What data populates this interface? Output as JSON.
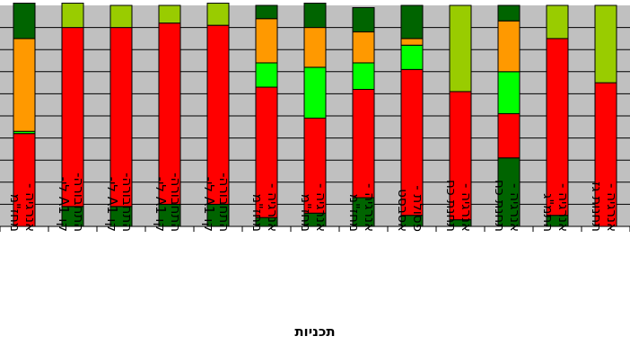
{
  "chart_data": {
    "type": "bar",
    "stacked": true,
    "percent": true,
    "xlabel": "תכניות",
    "ylim": [
      0,
      100
    ],
    "grid": true,
    "legend": "none",
    "background_color": "#c0c0c0",
    "categories": [
      "אנרגיה - מחז\"מ",
      "התחבורה- קו A1 לי-",
      "התחבורה- קו A1 לי-",
      "התחבורה- קו A1 לי-",
      "התחבורה- קו A1 לי-",
      "אנרגיה - מחז\"מ",
      "אנרגיה - מחז\"מ",
      "אנרגיה - מחז\"מ",
      "פסולת - אסבסט",
      "אנרגיה - תחנת כח",
      "אנרגיה - תחנת כח",
      "אנרגיה - התמ\"ג",
      "אנרגיה - תחנות גז"
    ],
    "series": [
      {
        "color": "#006400",
        "values": [
          0,
          9,
          9,
          10,
          10,
          4,
          6,
          13,
          5,
          3,
          31,
          5,
          0
        ]
      },
      {
        "color": "#ff0000",
        "values": [
          42,
          81,
          81,
          82,
          81,
          59,
          43,
          49,
          66,
          58,
          20,
          80,
          65
        ]
      },
      {
        "color": "#00ff00",
        "values": [
          1,
          0,
          0,
          0,
          0,
          11,
          23,
          12,
          11,
          0,
          19,
          0,
          0
        ]
      },
      {
        "color": "#ff9900",
        "values": [
          42,
          0,
          0,
          0,
          0,
          20,
          18,
          14,
          3,
          0,
          23,
          0,
          0
        ]
      },
      {
        "color": "#99cc00",
        "values": [
          0,
          11,
          10,
          8,
          10,
          0,
          0,
          0,
          0,
          39,
          0,
          15,
          35
        ]
      },
      {
        "color": "#006400",
        "values": [
          16,
          0,
          0,
          0,
          0,
          6,
          11,
          11,
          15,
          0,
          7,
          0,
          0
        ]
      }
    ]
  }
}
